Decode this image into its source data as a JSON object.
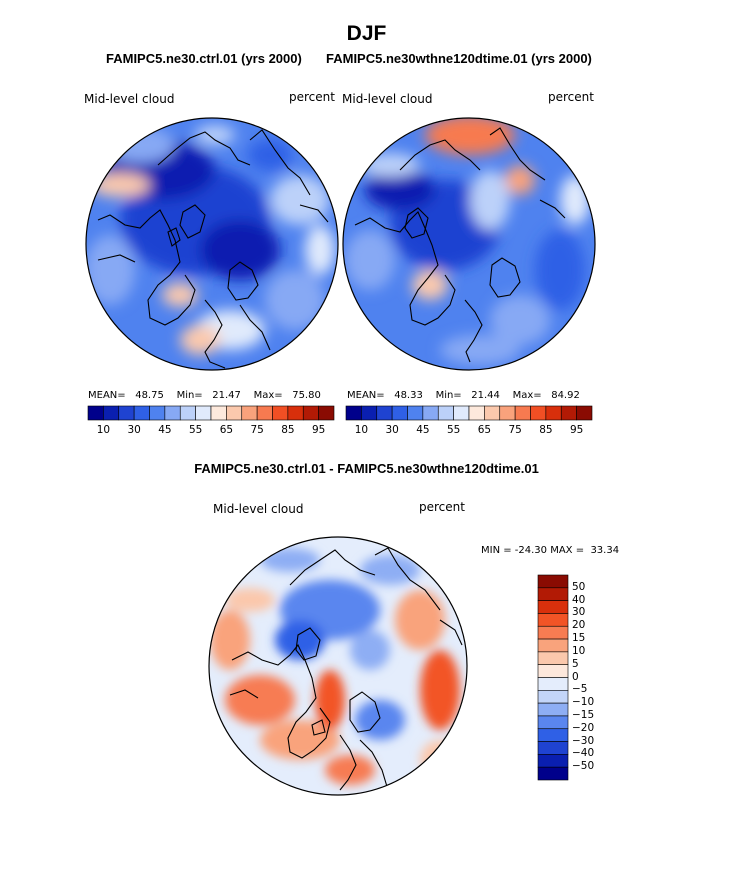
{
  "title": "DJF",
  "top_subtitle_left": "FAMIPC5.ne30.ctrl.01 (yrs 2000)",
  "top_subtitle_right": "FAMIPC5.ne30wthne120dtime.01 (yrs 2000)",
  "diff_subtitle": "FAMIPC5.ne30.ctrl.01 - FAMIPC5.ne30wthne120dtime.01",
  "colors": {
    "abs_scale": [
      "#00008b",
      "#0a1fb0",
      "#1f43d1",
      "#2f60e6",
      "#4f82ef",
      "#87a9f4",
      "#bcd1f9",
      "#e0eafc",
      "#fde9dc",
      "#fbc9ad",
      "#f9a27c",
      "#f77a50",
      "#f14f24",
      "#d82f0b",
      "#b21a05",
      "#8a0b02"
    ],
    "diff_scale": [
      "#00008b",
      "#0a1fb0",
      "#1f43d1",
      "#2f60e6",
      "#5a86ef",
      "#8eaef4",
      "#c3d5f9",
      "#e4edfc",
      "#fde8dc",
      "#fbc8ac",
      "#f9a37c",
      "#f77c52",
      "#f25426",
      "#d9300c",
      "#b21a05",
      "#8a0b02"
    ]
  },
  "chart_data": [
    {
      "type": "heatmap",
      "projection": "north polar stereographic",
      "panel": "left",
      "label_left": "Mid-level cloud",
      "label_right": "percent",
      "stats": {
        "mean_label": "MEAN=",
        "mean": "48.75",
        "min_label": "Min=",
        "min": "21.47",
        "max_label": "Max=",
        "max": "75.80"
      },
      "colorbar_ticks": [
        "10",
        "30",
        "45",
        "55",
        "65",
        "75",
        "85",
        "95"
      ]
    },
    {
      "type": "heatmap",
      "projection": "north polar stereographic",
      "panel": "right",
      "label_left": "Mid-level cloud",
      "label_right": "percent",
      "stats": {
        "mean_label": "MEAN=",
        "mean": "48.33",
        "min_label": "Min=",
        "min": "21.44",
        "max_label": "Max=",
        "max": "84.92"
      },
      "colorbar_ticks": [
        "10",
        "30",
        "45",
        "55",
        "65",
        "75",
        "85",
        "95"
      ]
    },
    {
      "type": "heatmap",
      "projection": "north polar stereographic",
      "panel": "difference",
      "label_left": "Mid-level cloud",
      "label_right": "percent",
      "minmax_text": "MIN = -24.30 MAX =  33.34",
      "colorbar_ticks": [
        "50",
        "40",
        "30",
        "20",
        "15",
        "10",
        "5",
        "0",
        "−5",
        "−10",
        "−15",
        "−20",
        "−30",
        "−40",
        "−50"
      ]
    }
  ]
}
